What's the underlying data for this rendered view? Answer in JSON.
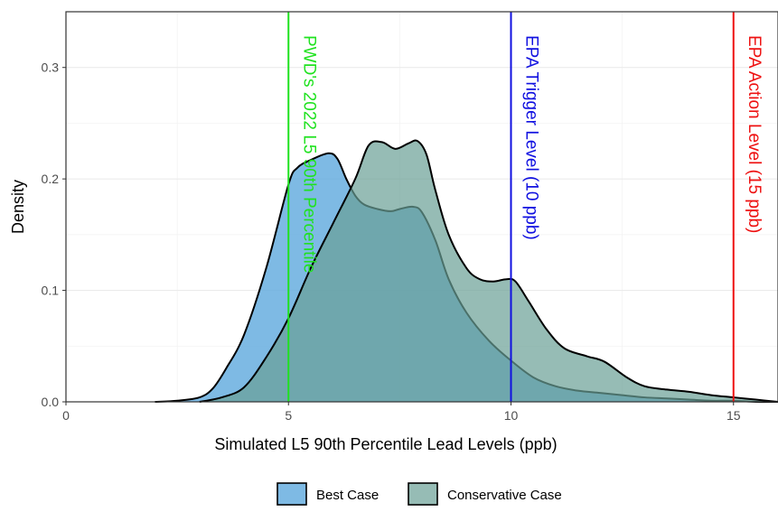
{
  "chart_data": {
    "type": "area",
    "xlabel": "Simulated L5 90th Percentile Lead Levels (ppb)",
    "ylabel": "Density",
    "xlim": [
      0,
      16
    ],
    "ylim": [
      0,
      0.35
    ],
    "x_ticks": [
      0,
      5,
      10,
      15
    ],
    "y_ticks": [
      0.0,
      0.1,
      0.2,
      0.3
    ],
    "x_tick_labels": [
      "0",
      "5",
      "10",
      "15"
    ],
    "y_tick_labels": [
      "0.0",
      "0.1",
      "0.2",
      "0.3"
    ],
    "grid": true,
    "legend_position": "bottom",
    "series": [
      {
        "name": "Best Case",
        "color": "#5ea9dd",
        "opacity": 0.8,
        "x": [
          2.0,
          2.5,
          3.0,
          3.3,
          3.6,
          4.0,
          4.5,
          5.0,
          5.2,
          5.5,
          5.9,
          6.1,
          6.3,
          6.5,
          6.7,
          7.0,
          7.3,
          7.5,
          7.8,
          8.0,
          8.3,
          8.6,
          9.0,
          9.5,
          10.0,
          10.5,
          11.0,
          11.5,
          12.0,
          12.5,
          13.0,
          13.5,
          14.0,
          14.5,
          15.0,
          15.5,
          16.0
        ],
        "values": [
          0.0,
          0.001,
          0.004,
          0.012,
          0.03,
          0.06,
          0.12,
          0.195,
          0.21,
          0.217,
          0.223,
          0.218,
          0.2,
          0.185,
          0.177,
          0.173,
          0.171,
          0.173,
          0.175,
          0.17,
          0.145,
          0.11,
          0.08,
          0.055,
          0.037,
          0.022,
          0.014,
          0.01,
          0.008,
          0.006,
          0.004,
          0.003,
          0.002,
          0.001,
          0.001,
          0.0,
          0.0
        ]
      },
      {
        "name": "Conservative Case",
        "color": "#6aa095",
        "opacity": 0.7,
        "x": [
          3.0,
          3.5,
          4.0,
          4.5,
          5.0,
          5.5,
          6.0,
          6.5,
          6.8,
          7.1,
          7.4,
          7.7,
          7.9,
          8.1,
          8.3,
          8.6,
          9.0,
          9.3,
          9.6,
          9.9,
          10.1,
          10.4,
          10.8,
          11.2,
          11.7,
          12.1,
          12.6,
          13.0,
          13.5,
          14.0,
          14.5,
          15.0,
          15.5,
          16.0
        ],
        "values": [
          0.0,
          0.004,
          0.013,
          0.04,
          0.075,
          0.12,
          0.16,
          0.2,
          0.23,
          0.233,
          0.227,
          0.232,
          0.234,
          0.222,
          0.19,
          0.15,
          0.12,
          0.11,
          0.108,
          0.11,
          0.108,
          0.09,
          0.065,
          0.048,
          0.041,
          0.036,
          0.022,
          0.014,
          0.011,
          0.009,
          0.006,
          0.004,
          0.002,
          0.0
        ]
      }
    ],
    "reference_lines": [
      {
        "x": 5,
        "label": "PWD's 2022 L5 90th Percentile",
        "color": "#1fe21f"
      },
      {
        "x": 10,
        "label": "EPA Trigger Level (10 ppb)",
        "color": "#1010e0"
      },
      {
        "x": 15,
        "label": "EPA Action Level (15 ppb)",
        "color": "#ee1111"
      }
    ]
  }
}
